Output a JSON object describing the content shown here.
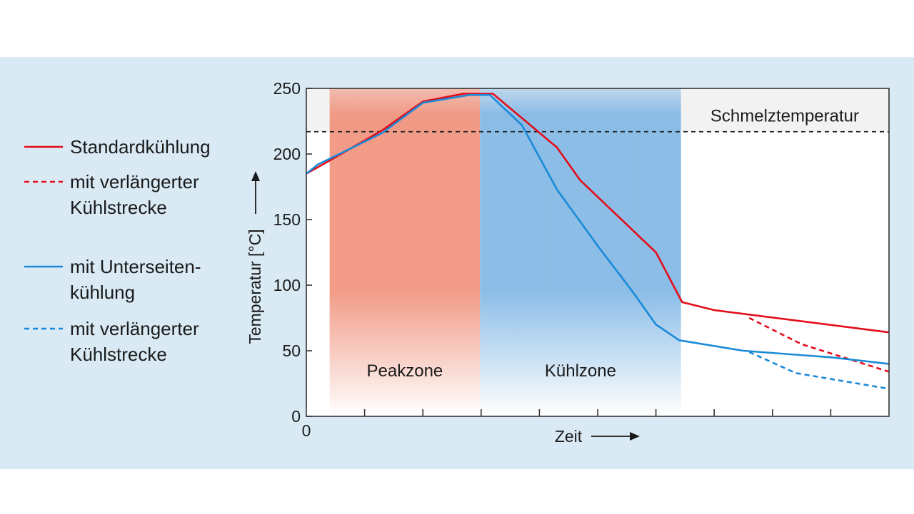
{
  "chart_data": {
    "type": "line",
    "ylabel": "Temperatur [°C]",
    "xlabel": "Zeit",
    "xlim": [
      0,
      100
    ],
    "ylim": [
      0,
      250
    ],
    "yticks": [
      "0",
      "50",
      "100",
      "150",
      "200",
      "250"
    ],
    "xtick_labels": [
      "0"
    ],
    "threshold": {
      "label": "Schmelztemperatur",
      "value": 217
    },
    "zones": [
      {
        "label": "Peakzone",
        "x0": 4,
        "x1": 29.8,
        "color": "#f0907a"
      },
      {
        "label": "Kühlzone",
        "x0": 29.8,
        "x1": 64.3,
        "color": "#7fb6e4"
      }
    ],
    "series": [
      {
        "name": "Standardkühlung",
        "color": "#e30d1a",
        "dash": false,
        "points": [
          [
            0,
            185
          ],
          [
            4,
            195
          ],
          [
            13,
            218
          ],
          [
            20,
            240
          ],
          [
            27,
            246
          ],
          [
            32,
            246
          ],
          [
            43,
            205
          ],
          [
            47,
            180
          ],
          [
            60,
            125
          ],
          [
            64.5,
            87
          ],
          [
            70,
            81
          ],
          [
            100,
            64
          ]
        ]
      },
      {
        "name": "mit verlängerter Kühlstrecke",
        "color": "#e30d1a",
        "dash": true,
        "points": [
          [
            76,
            75
          ],
          [
            85,
            55
          ],
          [
            100,
            34
          ]
        ]
      },
      {
        "name": "mit Unterseiten-kühlung",
        "color": "#1a8ad8",
        "dash": false,
        "points": [
          [
            0,
            185
          ],
          [
            2,
            192
          ],
          [
            13,
            216
          ],
          [
            20,
            239
          ],
          [
            28,
            245
          ],
          [
            31.5,
            245
          ],
          [
            37,
            222
          ],
          [
            43,
            173
          ],
          [
            50,
            130
          ],
          [
            56,
            95
          ],
          [
            60,
            70
          ],
          [
            64,
            58
          ],
          [
            75,
            50
          ],
          [
            90,
            45
          ],
          [
            100,
            40
          ]
        ]
      },
      {
        "name": "mit verlängerter Kühlstrecke",
        "color": "#1a8ad8",
        "dash": true,
        "points": [
          [
            76,
            49
          ],
          [
            84,
            33
          ],
          [
            100,
            21
          ]
        ]
      }
    ]
  },
  "legend": {
    "entries": [
      {
        "lines": [
          "Standardkühlung"
        ],
        "color": "#e30d1a",
        "dash": false
      },
      {
        "lines": [
          "mit verlängerter",
          "Kühlstrecke"
        ],
        "color": "#e30d1a",
        "dash": true
      },
      {
        "lines": [
          "mit Unterseiten-",
          "kühlung"
        ],
        "color": "#1a8ad8",
        "dash": false
      },
      {
        "lines": [
          "mit verlängerter",
          "Kühlstrecke"
        ],
        "color": "#1a8ad8",
        "dash": true
      }
    ]
  }
}
